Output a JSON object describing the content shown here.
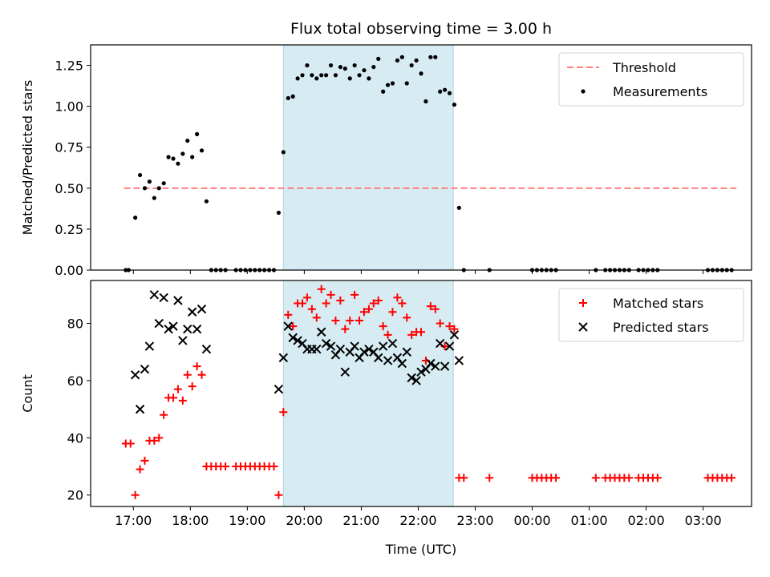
{
  "title": "Flux total observing time = 3.00 h",
  "colors": {
    "threshold": "#ff7f7f",
    "measurement": "#000000",
    "matched": "#ff0000",
    "predicted": "#000000",
    "highlight": "#add8e6"
  },
  "chart_data": [
    {
      "type": "scatter",
      "ylabel": "Matched/Predicted stars",
      "xlabel": "",
      "xlim_hours": [
        16.25,
        27.85
      ],
      "ylim": [
        0,
        1.375
      ],
      "x_ticks": [
        17,
        18,
        19,
        20,
        21,
        22,
        23,
        24,
        25,
        26,
        27
      ],
      "x_tick_labels": [],
      "y_ticks": [
        0,
        0.25,
        0.5,
        0.75,
        1.0,
        1.25
      ],
      "y_tick_labels": [
        "0.00",
        "0.25",
        "0.50",
        "0.75",
        "1.00",
        "1.25"
      ],
      "highlight_span": [
        "19:38",
        "22:37"
      ],
      "legend": {
        "placement": "top-right",
        "entries": [
          "Threshold",
          "Measurements"
        ]
      },
      "threshold": {
        "name": "Threshold",
        "x": [
          "16:50",
          "27:35"
        ],
        "y": 0.5,
        "style": "dashed"
      },
      "series": [
        {
          "name": "Measurements",
          "marker": "dot",
          "points": [
            [
              "16:52",
              0
            ],
            [
              "16:55",
              0
            ],
            [
              "17:02",
              0.32
            ],
            [
              "17:07",
              0.58
            ],
            [
              "17:12",
              0.5
            ],
            [
              "17:17",
              0.54
            ],
            [
              "17:22",
              0.44
            ],
            [
              "17:27",
              0.5
            ],
            [
              "17:32",
              0.53
            ],
            [
              "17:37",
              0.69
            ],
            [
              "17:42",
              0.68
            ],
            [
              "17:47",
              0.65
            ],
            [
              "17:52",
              0.71
            ],
            [
              "17:57",
              0.79
            ],
            [
              "18:02",
              0.69
            ],
            [
              "18:07",
              0.83
            ],
            [
              "18:12",
              0.73
            ],
            [
              "18:17",
              0.42
            ],
            [
              "18:22",
              0
            ],
            [
              "18:27",
              0
            ],
            [
              "18:32",
              0
            ],
            [
              "18:37",
              0
            ],
            [
              "18:48",
              0
            ],
            [
              "18:53",
              0
            ],
            [
              "18:58",
              0
            ],
            [
              "19:03",
              0
            ],
            [
              "19:08",
              0
            ],
            [
              "19:13",
              0
            ],
            [
              "19:18",
              0
            ],
            [
              "19:23",
              0
            ],
            [
              "19:28",
              0
            ],
            [
              "19:33",
              0.35
            ],
            [
              "19:38",
              0.72
            ],
            [
              "19:43",
              1.05
            ],
            [
              "19:48",
              1.06
            ],
            [
              "19:53",
              1.17
            ],
            [
              "19:58",
              1.19
            ],
            [
              "20:03",
              1.25
            ],
            [
              "20:08",
              1.19
            ],
            [
              "20:13",
              1.17
            ],
            [
              "20:18",
              1.19
            ],
            [
              "20:23",
              1.19
            ],
            [
              "20:28",
              1.25
            ],
            [
              "20:33",
              1.19
            ],
            [
              "20:38",
              1.24
            ],
            [
              "20:43",
              1.23
            ],
            [
              "20:48",
              1.17
            ],
            [
              "20:53",
              1.25
            ],
            [
              "20:58",
              1.19
            ],
            [
              "21:03",
              1.22
            ],
            [
              "21:08",
              1.17
            ],
            [
              "21:13",
              1.24
            ],
            [
              "21:18",
              1.29
            ],
            [
              "21:23",
              1.09
            ],
            [
              "21:28",
              1.13
            ],
            [
              "21:33",
              1.14
            ],
            [
              "21:38",
              1.28
            ],
            [
              "21:43",
              1.3
            ],
            [
              "21:48",
              1.14
            ],
            [
              "21:53",
              1.25
            ],
            [
              "21:58",
              1.28
            ],
            [
              "22:03",
              1.2
            ],
            [
              "22:08",
              1.03
            ],
            [
              "22:13",
              1.3
            ],
            [
              "22:18",
              1.3
            ],
            [
              "22:23",
              1.09
            ],
            [
              "22:28",
              1.1
            ],
            [
              "22:33",
              1.08
            ],
            [
              "22:38",
              1.01
            ],
            [
              "22:43",
              0.38
            ],
            [
              "22:48",
              0
            ],
            [
              "23:15",
              0
            ],
            [
              "24:00",
              0
            ],
            [
              "24:05",
              0
            ],
            [
              "24:10",
              0
            ],
            [
              "24:15",
              0
            ],
            [
              "24:20",
              0
            ],
            [
              "24:25",
              0
            ],
            [
              "25:07",
              0
            ],
            [
              "25:17",
              0
            ],
            [
              "25:22",
              0
            ],
            [
              "25:27",
              0
            ],
            [
              "25:32",
              0
            ],
            [
              "25:37",
              0
            ],
            [
              "25:42",
              0
            ],
            [
              "25:52",
              0
            ],
            [
              "25:57",
              0
            ],
            [
              "26:02",
              0
            ],
            [
              "26:07",
              0
            ],
            [
              "26:12",
              0
            ],
            [
              "27:05",
              0
            ],
            [
              "27:10",
              0
            ],
            [
              "27:15",
              0
            ],
            [
              "27:20",
              0
            ],
            [
              "27:25",
              0
            ],
            [
              "27:30",
              0
            ]
          ]
        }
      ]
    },
    {
      "type": "scatter",
      "ylabel": "Count",
      "xlabel": "Time (UTC)",
      "xlim_hours": [
        16.25,
        27.85
      ],
      "ylim": [
        16,
        95
      ],
      "x_ticks": [
        17,
        18,
        19,
        20,
        21,
        22,
        23,
        24,
        25,
        26,
        27
      ],
      "x_tick_labels": [
        "17:00",
        "18:00",
        "19:00",
        "20:00",
        "21:00",
        "22:00",
        "23:00",
        "00:00",
        "01:00",
        "02:00",
        "03:00"
      ],
      "y_ticks": [
        20,
        40,
        60,
        80
      ],
      "y_tick_labels": [
        "20",
        "40",
        "60",
        "80"
      ],
      "highlight_span": [
        "19:38",
        "22:37"
      ],
      "legend": {
        "placement": "top-right",
        "entries": [
          "Matched stars",
          "Predicted stars"
        ]
      },
      "series": [
        {
          "name": "Matched stars",
          "marker": "plus",
          "points": [
            [
              "16:52",
              38
            ],
            [
              "16:57",
              38
            ],
            [
              "17:02",
              20
            ],
            [
              "17:07",
              29
            ],
            [
              "17:12",
              32
            ],
            [
              "17:17",
              39
            ],
            [
              "17:22",
              39
            ],
            [
              "17:27",
              40
            ],
            [
              "17:32",
              48
            ],
            [
              "17:37",
              54
            ],
            [
              "17:42",
              54
            ],
            [
              "17:47",
              57
            ],
            [
              "17:52",
              53
            ],
            [
              "17:57",
              62
            ],
            [
              "18:02",
              58
            ],
            [
              "18:07",
              65
            ],
            [
              "18:12",
              62
            ],
            [
              "18:17",
              30
            ],
            [
              "18:22",
              30
            ],
            [
              "18:27",
              30
            ],
            [
              "18:32",
              30
            ],
            [
              "18:37",
              30
            ],
            [
              "18:48",
              30
            ],
            [
              "18:53",
              30
            ],
            [
              "18:58",
              30
            ],
            [
              "19:03",
              30
            ],
            [
              "19:08",
              30
            ],
            [
              "19:13",
              30
            ],
            [
              "19:18",
              30
            ],
            [
              "19:23",
              30
            ],
            [
              "19:28",
              30
            ],
            [
              "19:33",
              20
            ],
            [
              "19:38",
              49
            ],
            [
              "19:43",
              83
            ],
            [
              "19:48",
              79
            ],
            [
              "19:53",
              87
            ],
            [
              "19:58",
              87
            ],
            [
              "20:03",
              89
            ],
            [
              "20:08",
              85
            ],
            [
              "20:13",
              82
            ],
            [
              "20:18",
              92
            ],
            [
              "20:23",
              87
            ],
            [
              "20:28",
              90
            ],
            [
              "20:33",
              81
            ],
            [
              "20:38",
              88
            ],
            [
              "20:43",
              78
            ],
            [
              "20:48",
              81
            ],
            [
              "20:53",
              90
            ],
            [
              "20:58",
              81
            ],
            [
              "21:03",
              84
            ],
            [
              "21:08",
              85
            ],
            [
              "21:13",
              87
            ],
            [
              "21:18",
              88
            ],
            [
              "21:23",
              79
            ],
            [
              "21:28",
              76
            ],
            [
              "21:33",
              84
            ],
            [
              "21:38",
              89
            ],
            [
              "21:43",
              87
            ],
            [
              "21:48",
              82
            ],
            [
              "21:53",
              76
            ],
            [
              "21:58",
              77
            ],
            [
              "22:03",
              77
            ],
            [
              "22:08",
              67
            ],
            [
              "22:13",
              86
            ],
            [
              "22:18",
              85
            ],
            [
              "22:23",
              80
            ],
            [
              "22:28",
              72
            ],
            [
              "22:33",
              79
            ],
            [
              "22:38",
              78
            ],
            [
              "22:43",
              26
            ],
            [
              "22:48",
              26
            ],
            [
              "23:15",
              26
            ],
            [
              "24:00",
              26
            ],
            [
              "24:05",
              26
            ],
            [
              "24:10",
              26
            ],
            [
              "24:15",
              26
            ],
            [
              "24:20",
              26
            ],
            [
              "24:25",
              26
            ],
            [
              "25:07",
              26
            ],
            [
              "25:17",
              26
            ],
            [
              "25:22",
              26
            ],
            [
              "25:27",
              26
            ],
            [
              "25:32",
              26
            ],
            [
              "25:37",
              26
            ],
            [
              "25:42",
              26
            ],
            [
              "25:52",
              26
            ],
            [
              "25:57",
              26
            ],
            [
              "26:02",
              26
            ],
            [
              "26:07",
              26
            ],
            [
              "26:12",
              26
            ],
            [
              "27:05",
              26
            ],
            [
              "27:10",
              26
            ],
            [
              "27:15",
              26
            ],
            [
              "27:20",
              26
            ],
            [
              "27:25",
              26
            ],
            [
              "27:30",
              26
            ]
          ]
        },
        {
          "name": "Predicted stars",
          "marker": "x",
          "points": [
            [
              "17:02",
              62
            ],
            [
              "17:07",
              50
            ],
            [
              "17:12",
              64
            ],
            [
              "17:17",
              72
            ],
            [
              "17:22",
              90
            ],
            [
              "17:27",
              80
            ],
            [
              "17:32",
              89
            ],
            [
              "17:37",
              78
            ],
            [
              "17:42",
              79
            ],
            [
              "17:47",
              88
            ],
            [
              "17:52",
              74
            ],
            [
              "17:57",
              78
            ],
            [
              "18:02",
              84
            ],
            [
              "18:07",
              78
            ],
            [
              "18:12",
              85
            ],
            [
              "18:17",
              71
            ],
            [
              "19:33",
              57
            ],
            [
              "19:38",
              68
            ],
            [
              "19:43",
              79
            ],
            [
              "19:48",
              75
            ],
            [
              "19:53",
              74
            ],
            [
              "19:58",
              73
            ],
            [
              "20:03",
              71
            ],
            [
              "20:08",
              71
            ],
            [
              "20:13",
              71
            ],
            [
              "20:18",
              77
            ],
            [
              "20:23",
              73
            ],
            [
              "20:28",
              72
            ],
            [
              "20:33",
              69
            ],
            [
              "20:38",
              71
            ],
            [
              "20:43",
              63
            ],
            [
              "20:48",
              70
            ],
            [
              "20:53",
              72
            ],
            [
              "20:58",
              68
            ],
            [
              "21:03",
              70
            ],
            [
              "21:08",
              71
            ],
            [
              "21:13",
              70
            ],
            [
              "21:18",
              68
            ],
            [
              "21:23",
              72
            ],
            [
              "21:28",
              67
            ],
            [
              "21:33",
              73
            ],
            [
              "21:38",
              68
            ],
            [
              "21:43",
              66
            ],
            [
              "21:48",
              70
            ],
            [
              "21:53",
              61
            ],
            [
              "21:58",
              60
            ],
            [
              "22:03",
              63
            ],
            [
              "22:08",
              64
            ],
            [
              "22:13",
              66
            ],
            [
              "22:18",
              65
            ],
            [
              "22:23",
              73
            ],
            [
              "22:28",
              65
            ],
            [
              "22:33",
              72
            ],
            [
              "22:38",
              76
            ],
            [
              "22:43",
              67
            ]
          ]
        }
      ]
    }
  ]
}
